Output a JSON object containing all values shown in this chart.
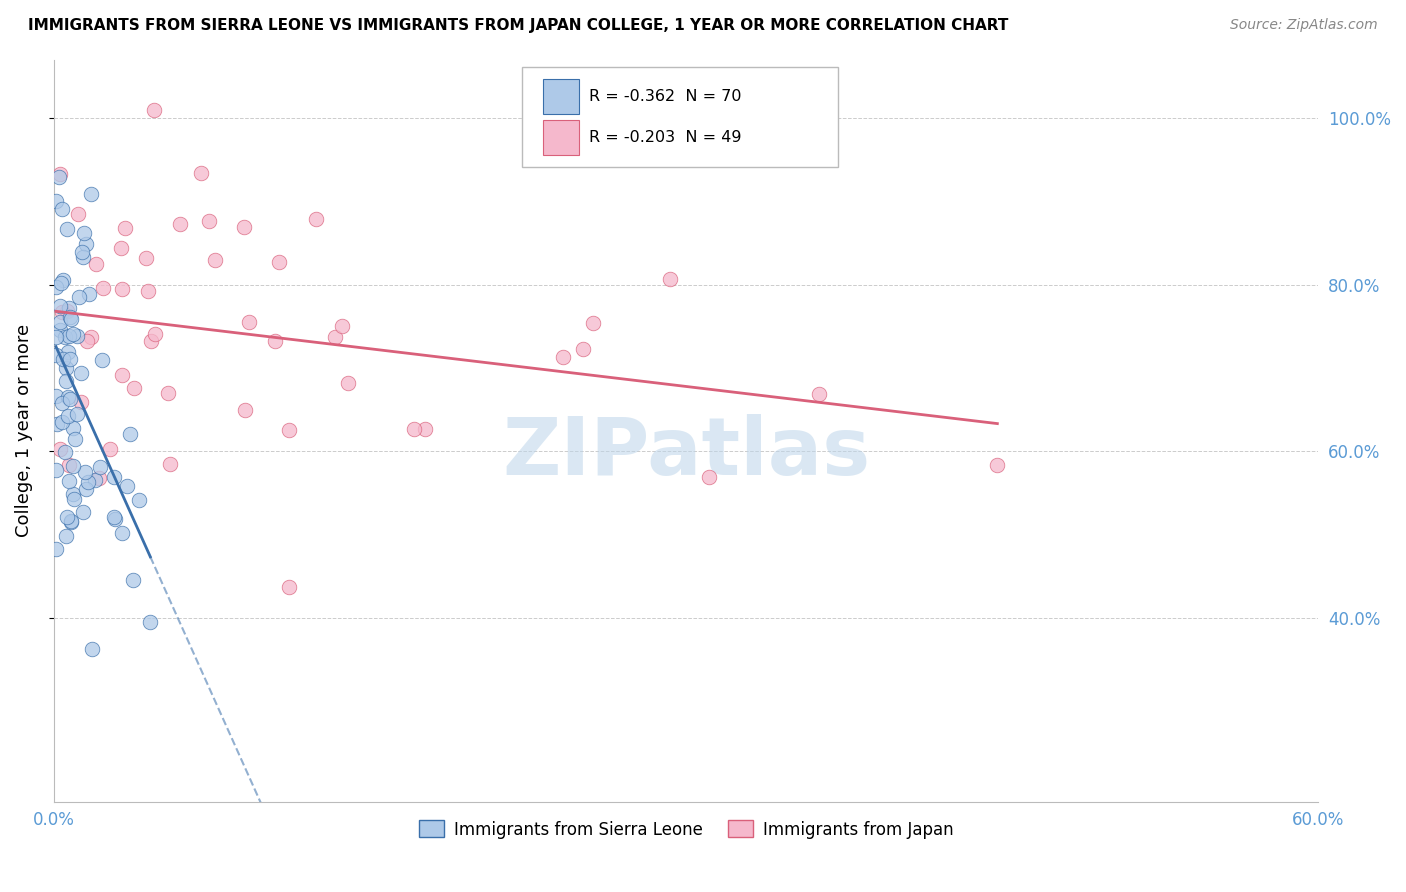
{
  "title": "IMMIGRANTS FROM SIERRA LEONE VS IMMIGRANTS FROM JAPAN COLLEGE, 1 YEAR OR MORE CORRELATION CHART",
  "source": "Source: ZipAtlas.com",
  "ylabel": "College, 1 year or more",
  "xlim": [
    0.0,
    0.6
  ],
  "ylim": [
    0.18,
    1.07
  ],
  "legend_blue_r": "R = -0.362",
  "legend_blue_n": "N = 70",
  "legend_pink_r": "R = -0.203",
  "legend_pink_n": "N = 49",
  "color_blue": "#aec9e8",
  "color_pink": "#f5b8cc",
  "line_blue": "#3a6faa",
  "line_pink": "#d9607a",
  "watermark": "ZIPatlas",
  "grid_color": "#cccccc",
  "yticks": [
    0.4,
    0.6,
    0.8,
    1.0
  ],
  "ytick_labels": [
    "40.0%",
    "60.0%",
    "80.0%",
    "100.0%"
  ],
  "xtick_left": "0.0%",
  "xtick_right": "60.0%"
}
